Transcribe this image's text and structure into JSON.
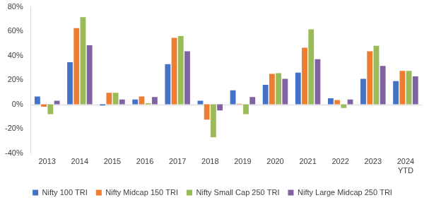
{
  "chart_data": {
    "type": "bar",
    "categories": [
      "2013",
      "2014",
      "2015",
      "2016",
      "2017",
      "2018",
      "2019",
      "2020",
      "2021",
      "2022",
      "2023",
      "2024 YTD"
    ],
    "series": [
      {
        "name": "Nifty 100 TRI",
        "color": "#4472c4",
        "values": [
          6.5,
          34.5,
          -1,
          4,
          33,
          3,
          11.5,
          16,
          26,
          5,
          21,
          19
        ]
      },
      {
        "name": "Nifty Midcap 150 TRI",
        "color": "#ed7d31",
        "values": [
          -2,
          62.5,
          9.5,
          6.5,
          54.5,
          -12.5,
          0.5,
          25,
          46.5,
          3.5,
          43.5,
          27.5
        ]
      },
      {
        "name": "Nifty Small Cap 250 TRI",
        "color": "#9bbb59",
        "values": [
          -8,
          71.5,
          9.5,
          1,
          56,
          -27,
          -8,
          25.5,
          61.5,
          -3,
          48,
          27.5
        ]
      },
      {
        "name": "Nifty Large Midcap 250 TRI",
        "color": "#8064a2",
        "values": [
          3,
          48.5,
          4,
          6,
          43.5,
          -5,
          6,
          21,
          37,
          4,
          31.5,
          23
        ]
      }
    ],
    "ylim": [
      -40,
      80
    ],
    "yticks": [
      {
        "value": -40,
        "label": "-40%"
      },
      {
        "value": -20,
        "label": "-20%"
      },
      {
        "value": 0,
        "label": "0%"
      },
      {
        "value": 20,
        "label": "20%"
      },
      {
        "value": 40,
        "label": "40%"
      },
      {
        "value": 60,
        "label": "60%"
      },
      {
        "value": 80,
        "label": "80%"
      }
    ],
    "grid": false,
    "legend": "bottom"
  }
}
